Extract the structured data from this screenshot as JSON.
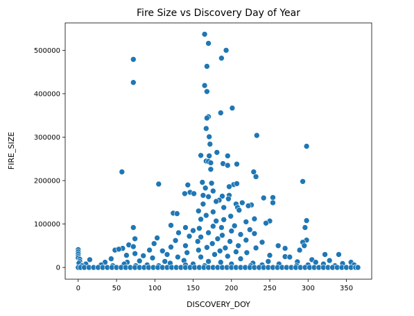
{
  "chart_data": {
    "type": "scatter",
    "title": "Fire Size vs Discovery Day of Year",
    "xlabel": "DISCOVERY_DOY",
    "ylabel": "FIRE_SIZE",
    "xlim": [
      -17,
      383
    ],
    "ylim": [
      -27000,
      563000
    ],
    "xticks": [
      0,
      50,
      100,
      150,
      200,
      250,
      300,
      350
    ],
    "yticks": [
      0,
      100000,
      200000,
      300000,
      400000,
      500000
    ],
    "grid": false,
    "legend": "none",
    "point_color": "#1f77b4",
    "point_edge_color": "#ffffff",
    "points": [
      [
        165,
        537000
      ],
      [
        170,
        516000
      ],
      [
        193,
        500000
      ],
      [
        72,
        479000
      ],
      [
        187,
        482000
      ],
      [
        168,
        463000
      ],
      [
        72,
        426000
      ],
      [
        165,
        419000
      ],
      [
        168,
        405000
      ],
      [
        201,
        367000
      ],
      [
        186,
        356000
      ],
      [
        170,
        347000
      ],
      [
        168,
        344000
      ],
      [
        167,
        320000
      ],
      [
        233,
        304000
      ],
      [
        171,
        301000
      ],
      [
        298,
        279000
      ],
      [
        172,
        284000
      ],
      [
        181,
        265000
      ],
      [
        160,
        258000
      ],
      [
        195,
        257000
      ],
      [
        171,
        257000
      ],
      [
        167,
        245000
      ],
      [
        170,
        244000
      ],
      [
        173,
        241000
      ],
      [
        207,
        238000
      ],
      [
        189,
        239000
      ],
      [
        195,
        235000
      ],
      [
        57,
        220000
      ],
      [
        229,
        220000
      ],
      [
        173,
        226000
      ],
      [
        232,
        209000
      ],
      [
        293,
        198000
      ],
      [
        105,
        192000
      ],
      [
        162,
        196000
      ],
      [
        174,
        194000
      ],
      [
        203,
        191000
      ],
      [
        207,
        193000
      ],
      [
        143,
        190000
      ],
      [
        166,
        183000
      ],
      [
        197,
        186000
      ],
      [
        176,
        176000
      ],
      [
        146,
        173000
      ],
      [
        151,
        170000
      ],
      [
        139,
        170000
      ],
      [
        163,
        166000
      ],
      [
        188,
        164000
      ],
      [
        197,
        166000
      ],
      [
        242,
        160000
      ],
      [
        254,
        161000
      ],
      [
        170,
        163000
      ],
      [
        196,
        158000
      ],
      [
        184,
        155000
      ],
      [
        180,
        152000
      ],
      [
        214,
        149000
      ],
      [
        206,
        146000
      ],
      [
        226,
        144000
      ],
      [
        163,
        146000
      ],
      [
        222,
        142000
      ],
      [
        254,
        149000
      ],
      [
        208,
        138000
      ],
      [
        190,
        138000
      ],
      [
        210,
        132000
      ],
      [
        157,
        130000
      ],
      [
        176,
        128000
      ],
      [
        124,
        125000
      ],
      [
        129,
        124000
      ],
      [
        167,
        120000
      ],
      [
        199,
        118000
      ],
      [
        230,
        112000
      ],
      [
        160,
        111000
      ],
      [
        298,
        108000
      ],
      [
        190,
        110000
      ],
      [
        219,
        105000
      ],
      [
        180,
        107000
      ],
      [
        250,
        107000
      ],
      [
        245,
        102000
      ],
      [
        121,
        97000
      ],
      [
        72,
        92000
      ],
      [
        296,
        92000
      ],
      [
        176,
        95000
      ],
      [
        204,
        96000
      ],
      [
        140,
        92000
      ],
      [
        158,
        90000
      ],
      [
        187,
        92000
      ],
      [
        224,
        87000
      ],
      [
        150,
        85000
      ],
      [
        200,
        84000
      ],
      [
        131,
        80000
      ],
      [
        170,
        80000
      ],
      [
        230,
        78000
      ],
      [
        212,
        76000
      ],
      [
        188,
        74000
      ],
      [
        145,
        72000
      ],
      [
        160,
        70000
      ],
      [
        103,
        68000
      ],
      [
        74,
        66000
      ],
      [
        182,
        66000
      ],
      [
        298,
        63000
      ],
      [
        219,
        63000
      ],
      [
        127,
        62000
      ],
      [
        156,
        60000
      ],
      [
        198,
        60000
      ],
      [
        293,
        58000
      ],
      [
        240,
        58000
      ],
      [
        99,
        55000
      ],
      [
        175,
        55000
      ],
      [
        66,
        52000
      ],
      [
        261,
        50000
      ],
      [
        140,
        50000
      ],
      [
        209,
        50000
      ],
      [
        295,
        50000
      ],
      [
        72,
        48000
      ],
      [
        121,
        47000
      ],
      [
        168,
        46000
      ],
      [
        192,
        45000
      ],
      [
        232,
        45000
      ],
      [
        58,
        44000
      ],
      [
        270,
        44000
      ],
      [
        48,
        40000
      ],
      [
        0,
        41000
      ],
      [
        53,
        42000
      ],
      [
        93,
        40000
      ],
      [
        110,
        38000
      ],
      [
        157,
        40000
      ],
      [
        0,
        36000
      ],
      [
        289,
        40000
      ],
      [
        185,
        38000
      ],
      [
        206,
        36000
      ],
      [
        142,
        34000
      ],
      [
        220,
        34000
      ],
      [
        0,
        31000
      ],
      [
        340,
        30000
      ],
      [
        74,
        32000
      ],
      [
        116,
        30000
      ],
      [
        178,
        30000
      ],
      [
        322,
        30000
      ],
      [
        63,
        28000
      ],
      [
        250,
        28000
      ],
      [
        85,
        27000
      ],
      [
        0,
        26000
      ],
      [
        195,
        26000
      ],
      [
        270,
        25000
      ],
      [
        130,
        24000
      ],
      [
        160,
        24000
      ],
      [
        276,
        24000
      ],
      [
        97,
        22000
      ],
      [
        0,
        22000
      ],
      [
        2,
        19000
      ],
      [
        43,
        20000
      ],
      [
        15,
        18000
      ],
      [
        212,
        20000
      ],
      [
        305,
        18000
      ],
      [
        328,
        16000
      ],
      [
        138,
        16000
      ],
      [
        80,
        15000
      ],
      [
        2,
        14000
      ],
      [
        248,
        14000
      ],
      [
        113,
        14000
      ],
      [
        170,
        14000
      ],
      [
        35,
        12000
      ],
      [
        64,
        12000
      ],
      [
        310,
        12000
      ],
      [
        186,
        12000
      ],
      [
        286,
        13000
      ],
      [
        356,
        12000
      ],
      [
        1,
        10000
      ],
      [
        120,
        10000
      ],
      [
        228,
        10000
      ],
      [
        345,
        9000
      ],
      [
        10,
        8000
      ],
      [
        60,
        8000
      ],
      [
        150,
        8000
      ],
      [
        200,
        8000
      ],
      [
        262,
        8000
      ],
      [
        320,
        8000
      ],
      [
        30,
        6000
      ],
      [
        90,
        6000
      ],
      [
        140,
        6000
      ],
      [
        240,
        6000
      ],
      [
        300,
        6000
      ],
      [
        360,
        6000
      ],
      [
        5,
        4000
      ],
      [
        45,
        4000
      ],
      [
        75,
        4000
      ],
      [
        105,
        4000
      ],
      [
        165,
        4000
      ],
      [
        225,
        4000
      ],
      [
        285,
        4000
      ],
      [
        335,
        4000
      ],
      [
        0,
        0
      ],
      [
        3,
        0
      ],
      [
        8,
        0
      ],
      [
        14,
        0
      ],
      [
        20,
        0
      ],
      [
        26,
        0
      ],
      [
        32,
        0
      ],
      [
        38,
        0
      ],
      [
        44,
        0
      ],
      [
        50,
        0
      ],
      [
        56,
        0
      ],
      [
        62,
        0
      ],
      [
        68,
        0
      ],
      [
        74,
        0
      ],
      [
        80,
        0
      ],
      [
        86,
        0
      ],
      [
        92,
        0
      ],
      [
        98,
        0
      ],
      [
        104,
        0
      ],
      [
        110,
        0
      ],
      [
        116,
        0
      ],
      [
        122,
        0
      ],
      [
        128,
        0
      ],
      [
        134,
        0
      ],
      [
        140,
        0
      ],
      [
        146,
        0
      ],
      [
        152,
        0
      ],
      [
        158,
        0
      ],
      [
        164,
        0
      ],
      [
        170,
        0
      ],
      [
        176,
        0
      ],
      [
        182,
        0
      ],
      [
        188,
        0
      ],
      [
        194,
        0
      ],
      [
        200,
        0
      ],
      [
        206,
        0
      ],
      [
        212,
        0
      ],
      [
        218,
        0
      ],
      [
        224,
        0
      ],
      [
        230,
        0
      ],
      [
        236,
        0
      ],
      [
        242,
        0
      ],
      [
        248,
        0
      ],
      [
        254,
        0
      ],
      [
        260,
        0
      ],
      [
        266,
        0
      ],
      [
        272,
        0
      ],
      [
        278,
        0
      ],
      [
        284,
        0
      ],
      [
        290,
        0
      ],
      [
        296,
        0
      ],
      [
        302,
        0
      ],
      [
        308,
        0
      ],
      [
        314,
        0
      ],
      [
        320,
        0
      ],
      [
        326,
        0
      ],
      [
        332,
        0
      ],
      [
        338,
        0
      ],
      [
        344,
        0
      ],
      [
        350,
        0
      ],
      [
        356,
        0
      ],
      [
        362,
        0
      ],
      [
        365,
        0
      ]
    ]
  }
}
